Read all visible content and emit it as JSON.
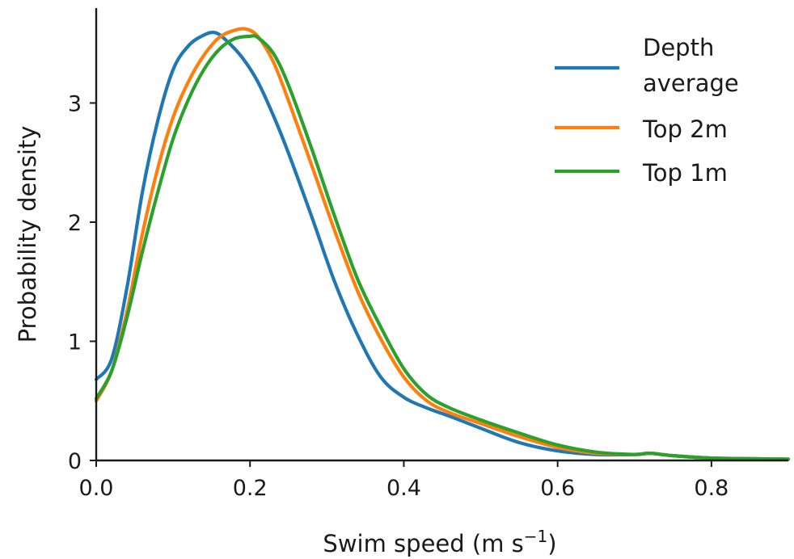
{
  "chart_data": {
    "type": "line",
    "title": "",
    "xlabel": "Swim speed (m s",
    "xlabel_superscript": "−1",
    "xlabel_suffix": ")",
    "ylabel": "Probability density",
    "xlim": [
      0.0,
      0.9
    ],
    "ylim": [
      0,
      3.65
    ],
    "xticks": [
      0.0,
      0.2,
      0.4,
      0.6,
      0.8
    ],
    "xtick_labels": [
      "0.0",
      "0.2",
      "0.4",
      "0.6",
      "0.8"
    ],
    "yticks": [
      0,
      1,
      2,
      3
    ],
    "ytick_labels": [
      "0",
      "1",
      "2",
      "3"
    ],
    "grid": false,
    "legend_position": "top-right",
    "series": [
      {
        "name": "Depth average",
        "legend_lines": [
          "Depth",
          "average"
        ],
        "color": "#1f77b4",
        "x": [
          0.0,
          0.02,
          0.04,
          0.06,
          0.08,
          0.1,
          0.12,
          0.14,
          0.155,
          0.17,
          0.19,
          0.21,
          0.23,
          0.25,
          0.28,
          0.31,
          0.34,
          0.37,
          0.4,
          0.43,
          0.46,
          0.5,
          0.55,
          0.6,
          0.65,
          0.7,
          0.72,
          0.75,
          0.8,
          0.85,
          0.9
        ],
        "y": [
          0.68,
          0.85,
          1.45,
          2.25,
          2.85,
          3.28,
          3.48,
          3.57,
          3.59,
          3.52,
          3.38,
          3.18,
          2.9,
          2.58,
          2.05,
          1.5,
          1.05,
          0.7,
          0.53,
          0.44,
          0.37,
          0.27,
          0.15,
          0.08,
          0.05,
          0.05,
          0.06,
          0.04,
          0.02,
          0.015,
          0.01
        ]
      },
      {
        "name": "Top 2m",
        "legend_lines": [
          "Top 2m"
        ],
        "color": "#ff7f0e",
        "x": [
          0.0,
          0.02,
          0.04,
          0.06,
          0.08,
          0.1,
          0.12,
          0.14,
          0.16,
          0.18,
          0.195,
          0.21,
          0.23,
          0.25,
          0.28,
          0.31,
          0.34,
          0.37,
          0.4,
          0.43,
          0.46,
          0.5,
          0.55,
          0.6,
          0.65,
          0.7,
          0.72,
          0.75,
          0.8,
          0.85,
          0.9
        ],
        "y": [
          0.5,
          0.75,
          1.25,
          1.9,
          2.45,
          2.88,
          3.18,
          3.4,
          3.55,
          3.61,
          3.62,
          3.56,
          3.35,
          3.02,
          2.48,
          1.93,
          1.42,
          1.02,
          0.7,
          0.5,
          0.4,
          0.31,
          0.2,
          0.11,
          0.06,
          0.05,
          0.06,
          0.04,
          0.02,
          0.015,
          0.01
        ]
      },
      {
        "name": "Top 1m",
        "legend_lines": [
          "Top 1m"
        ],
        "color": "#2ca02c",
        "x": [
          0.0,
          0.02,
          0.04,
          0.06,
          0.08,
          0.1,
          0.12,
          0.14,
          0.16,
          0.18,
          0.2,
          0.21,
          0.23,
          0.25,
          0.28,
          0.31,
          0.34,
          0.37,
          0.4,
          0.43,
          0.46,
          0.5,
          0.55,
          0.6,
          0.65,
          0.7,
          0.72,
          0.75,
          0.8,
          0.85,
          0.9
        ],
        "y": [
          0.52,
          0.75,
          1.2,
          1.75,
          2.25,
          2.7,
          3.03,
          3.28,
          3.45,
          3.54,
          3.56,
          3.55,
          3.42,
          3.15,
          2.62,
          2.05,
          1.52,
          1.12,
          0.77,
          0.55,
          0.44,
          0.34,
          0.23,
          0.13,
          0.07,
          0.05,
          0.06,
          0.04,
          0.02,
          0.015,
          0.01
        ]
      }
    ]
  }
}
